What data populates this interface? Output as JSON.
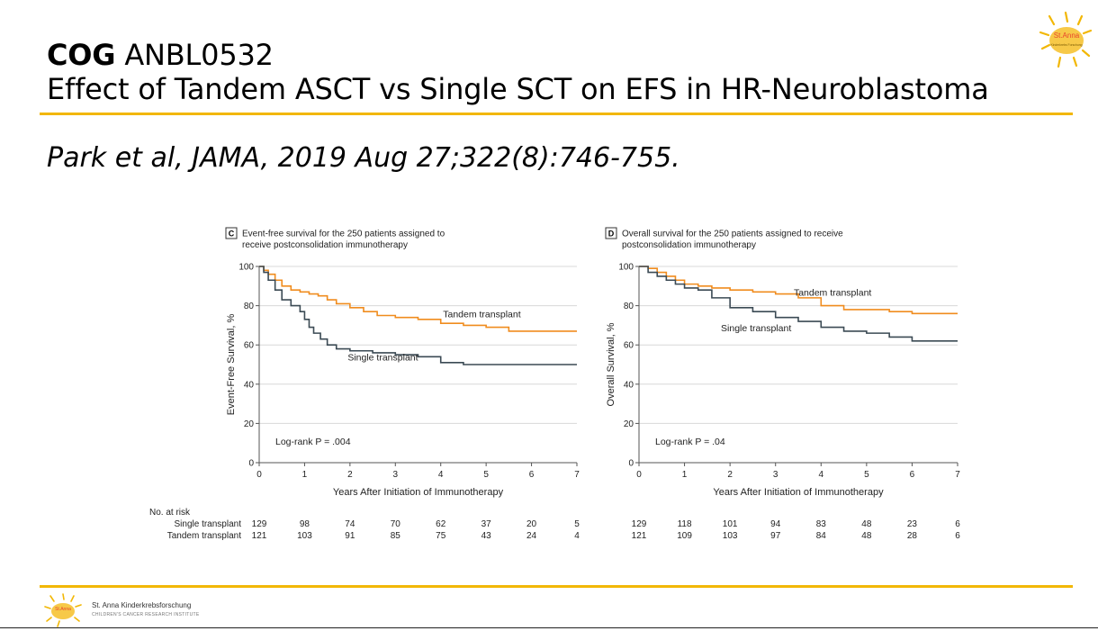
{
  "slide": {
    "title_bold": "COG",
    "title_rest": "ANBL0532",
    "title_line2": "Effect of Tandem ASCT vs Single SCT  on EFS in HR-Neuroblastoma",
    "citation": "Park et al, JAMA,  2019 Aug 27;322(8):746-755.",
    "logo_text": "St.Anna",
    "logo_subtext": "Kinderkrebs Forschung",
    "footer_name": "St. Anna Kinderkrebsforschung",
    "footer_sub": "CHILDREN'S CANCER RESEARCH INSTITUTE",
    "accent_color": "#f2b705"
  },
  "risk_table": {
    "header": "No. at risk",
    "row_labels": [
      "Single transplant",
      "Tandem transplant"
    ]
  },
  "chart_data": [
    {
      "type": "line",
      "panel_letter": "C",
      "title_line1": "Event-free survival for the 250 patients assigned to",
      "title_line2": "receive postconsolidation immunotherapy",
      "xlabel": "Years After Initiation of Immunotherapy",
      "ylabel": "Event-Free Survival, %",
      "xlim": [
        0,
        7
      ],
      "ylim": [
        0,
        100
      ],
      "x_ticks": [
        "0",
        "1",
        "2",
        "3",
        "4",
        "5",
        "6",
        "7"
      ],
      "y_ticks": [
        "0",
        "20",
        "40",
        "60",
        "80",
        "100"
      ],
      "grid": true,
      "annotation": "Log-rank P = .004",
      "series": [
        {
          "name": "Tandem transplant",
          "color": "#f08c1e",
          "x": [
            0,
            0.1,
            0.2,
            0.35,
            0.5,
            0.7,
            0.9,
            1.1,
            1.3,
            1.5,
            1.7,
            2.0,
            2.3,
            2.6,
            3.0,
            3.5,
            4.0,
            4.5,
            5.0,
            5.5,
            6.0,
            7.0
          ],
          "y": [
            100,
            98,
            96,
            93,
            90,
            88,
            87,
            86,
            85,
            83,
            81,
            79,
            77,
            75,
            74,
            73,
            71,
            70,
            69,
            67,
            67,
            67
          ],
          "label_pos": [
            4.05,
            74
          ]
        },
        {
          "name": "Single transplant",
          "color": "#3b4a54",
          "x": [
            0,
            0.1,
            0.2,
            0.35,
            0.5,
            0.7,
            0.9,
            1.0,
            1.1,
            1.2,
            1.35,
            1.5,
            1.7,
            2.0,
            2.5,
            3.0,
            3.5,
            4.0,
            4.5,
            5.0,
            6.0,
            7.0
          ],
          "y": [
            100,
            97,
            93,
            88,
            83,
            80,
            77,
            73,
            69,
            66,
            63,
            60,
            58,
            57,
            56,
            55,
            54,
            51,
            50,
            50,
            50,
            50
          ],
          "label_pos": [
            1.95,
            52
          ]
        }
      ],
      "at_risk": {
        "Single transplant": [
          129,
          98,
          74,
          70,
          62,
          37,
          20,
          5
        ],
        "Tandem transplant": [
          121,
          103,
          91,
          85,
          75,
          43,
          24,
          4
        ]
      }
    },
    {
      "type": "line",
      "panel_letter": "D",
      "title_line1": "Overall survival for the 250 patients assigned to receive",
      "title_line2": "postconsolidation immunotherapy",
      "xlabel": "Years After Initiation of Immunotherapy",
      "ylabel": "Overall Survival, %",
      "xlim": [
        0,
        7
      ],
      "ylim": [
        0,
        100
      ],
      "x_ticks": [
        "0",
        "1",
        "2",
        "3",
        "4",
        "5",
        "6",
        "7"
      ],
      "y_ticks": [
        "0",
        "20",
        "40",
        "60",
        "80",
        "100"
      ],
      "grid": true,
      "annotation": "Log-rank P = .04",
      "series": [
        {
          "name": "Tandem transplant",
          "color": "#f08c1e",
          "x": [
            0,
            0.2,
            0.4,
            0.6,
            0.8,
            1.0,
            1.3,
            1.6,
            2.0,
            2.5,
            3.0,
            3.5,
            4.0,
            4.5,
            5.0,
            5.5,
            6.0,
            7.0
          ],
          "y": [
            100,
            99,
            97,
            95,
            93,
            91,
            90,
            89,
            88,
            87,
            86,
            84,
            80,
            78,
            78,
            77,
            76,
            76
          ],
          "label_pos": [
            3.4,
            85
          ]
        },
        {
          "name": "Single transplant",
          "color": "#3b4a54",
          "x": [
            0,
            0.2,
            0.4,
            0.6,
            0.8,
            1.0,
            1.3,
            1.6,
            2.0,
            2.5,
            3.0,
            3.5,
            4.0,
            4.5,
            5.0,
            5.5,
            6.0,
            7.0
          ],
          "y": [
            100,
            97,
            95,
            93,
            91,
            89,
            88,
            84,
            79,
            77,
            74,
            72,
            69,
            67,
            66,
            64,
            62,
            62
          ],
          "label_pos": [
            1.8,
            67
          ]
        }
      ],
      "at_risk": {
        "Single transplant": [
          129,
          118,
          101,
          94,
          83,
          48,
          23,
          6
        ],
        "Tandem transplant": [
          121,
          109,
          103,
          97,
          84,
          48,
          28,
          6
        ]
      }
    }
  ]
}
